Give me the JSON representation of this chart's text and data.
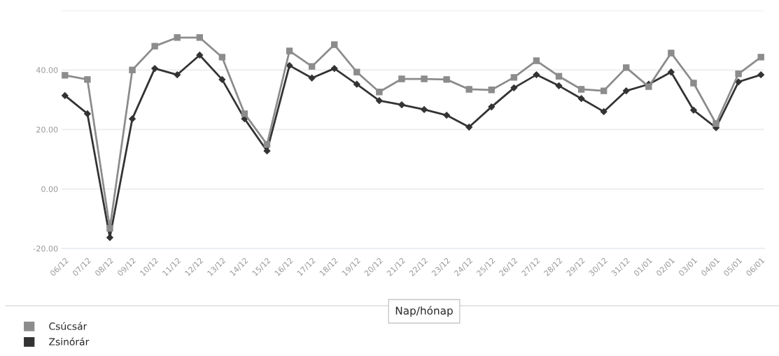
{
  "chart_data": {
    "type": "line",
    "xlabel": "Nap/hónap",
    "categories": [
      "06/12",
      "07/12",
      "08/12",
      "09/12",
      "10/12",
      "11/12",
      "12/12",
      "13/12",
      "14/12",
      "15/12",
      "16/12",
      "17/12",
      "18/12",
      "19/12",
      "20/12",
      "21/12",
      "22/12",
      "23/12",
      "24/12",
      "25/12",
      "26/12",
      "27/12",
      "28/12",
      "29/12",
      "30/12",
      "31/12",
      "01/01",
      "02/01",
      "03/01",
      "04/01",
      "05/01",
      "06/01"
    ],
    "series": [
      {
        "name": "Csúcsár",
        "color": "#8c8c8c",
        "marker": "square",
        "values": [
          38.2,
          36.8,
          -13.2,
          40.0,
          48.0,
          50.9,
          50.9,
          44.3,
          25.3,
          15.0,
          46.4,
          41.2,
          48.5,
          39.3,
          32.6,
          37.0,
          37.0,
          36.8,
          33.5,
          33.3,
          37.5,
          43.1,
          37.9,
          33.5,
          33.0,
          40.8,
          34.4,
          45.7,
          35.6,
          22.0,
          38.7,
          44.3
        ]
      },
      {
        "name": "Zsinórár",
        "color": "#333333",
        "marker": "diamond",
        "values": [
          31.4,
          25.3,
          -16.3,
          23.6,
          40.5,
          38.4,
          45.0,
          36.8,
          23.6,
          12.8,
          41.5,
          37.3,
          40.5,
          35.2,
          29.7,
          28.3,
          26.7,
          24.8,
          20.8,
          27.6,
          34.0,
          38.4,
          34.7,
          30.4,
          26.0,
          33.0,
          35.2,
          39.3,
          26.5,
          20.6,
          36.0,
          38.4
        ]
      }
    ],
    "ylim": [
      -20,
      60
    ],
    "yticks": [
      {
        "value": -20,
        "label": "-20.00"
      },
      {
        "value": 0,
        "label": "0.00"
      },
      {
        "value": 20,
        "label": "20.00"
      },
      {
        "value": 40,
        "label": "40.00"
      },
      {
        "value": 60,
        "label": null
      }
    ],
    "grid": "y",
    "legend": "bottom left",
    "line_style": "solid"
  }
}
